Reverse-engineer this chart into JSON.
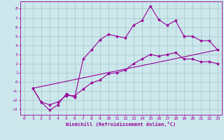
{
  "title": "",
  "xlabel": "Windchill (Refroidissement éolien,°C)",
  "ylabel": "",
  "background_color": "#cce8ec",
  "grid_color": "#aacccc",
  "line_color": "#990099",
  "xlim": [
    -0.5,
    23.5
  ],
  "ylim": [
    -3.6,
    8.8
  ],
  "yticks": [
    -3,
    -2,
    -1,
    0,
    1,
    2,
    3,
    4,
    5,
    6,
    7,
    8
  ],
  "xticks": [
    0,
    1,
    2,
    3,
    4,
    5,
    6,
    7,
    8,
    9,
    10,
    11,
    12,
    13,
    14,
    15,
    16,
    17,
    18,
    19,
    20,
    21,
    22,
    23
  ],
  "series1_x": [
    1,
    2,
    3,
    4,
    5,
    6,
    7,
    8,
    9,
    10,
    11,
    12,
    13,
    14,
    15,
    16,
    17,
    18,
    19,
    20,
    21,
    22,
    23
  ],
  "series1_y": [
    -0.7,
    -2.2,
    -3.1,
    -2.5,
    -1.3,
    -1.7,
    2.5,
    3.5,
    4.6,
    5.2,
    5.0,
    4.8,
    6.2,
    6.7,
    8.3,
    6.8,
    6.2,
    6.7,
    5.0,
    5.0,
    4.5,
    4.5,
    3.5
  ],
  "series2_x": [
    1,
    2,
    3,
    4,
    5,
    6,
    7,
    8,
    9,
    10,
    11,
    12,
    13,
    14,
    15,
    16,
    17,
    18,
    19,
    20,
    21,
    22,
    23
  ],
  "series2_y": [
    -0.7,
    -2.2,
    -2.5,
    -2.2,
    -1.5,
    -1.5,
    -0.8,
    -0.1,
    0.2,
    0.9,
    1.0,
    1.3,
    2.0,
    2.5,
    3.0,
    2.8,
    3.0,
    3.2,
    2.5,
    2.5,
    2.2,
    2.2,
    2.0
  ],
  "series3_x": [
    1,
    23
  ],
  "series3_y": [
    -0.7,
    3.5
  ]
}
